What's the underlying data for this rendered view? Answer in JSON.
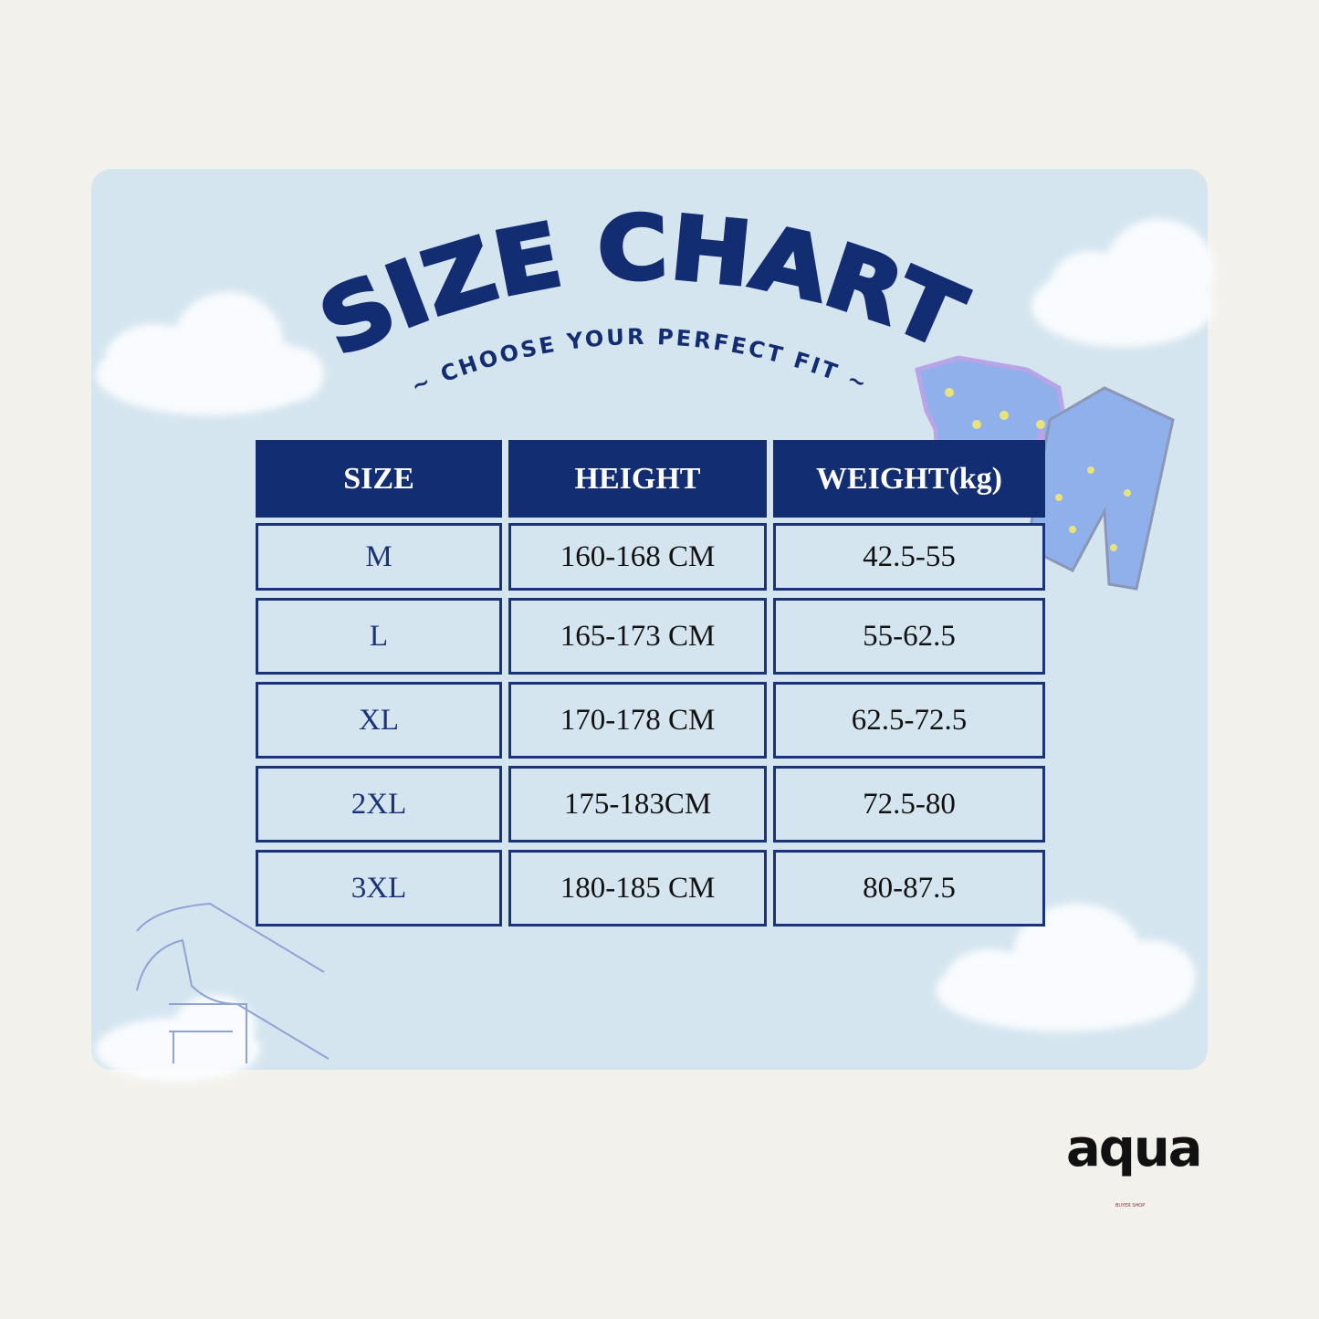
{
  "header": {
    "title": "SIZE CHART",
    "subtitle": "~ CHOOSE YOUR PERFECT FIT ~"
  },
  "table": {
    "columns": [
      "SIZE",
      "HEIGHT",
      "WEIGHT(kg)"
    ],
    "rows": [
      [
        "M",
        "160-168 CM",
        "42.5-55"
      ],
      [
        "L",
        "165-173 CM",
        "55-62.5"
      ],
      [
        "XL",
        "170-178 CM",
        "62.5-72.5"
      ],
      [
        "2XL",
        "175-183CM",
        "72.5-80"
      ],
      [
        "3XL",
        "180-185 CM",
        "80-87.5"
      ]
    ]
  },
  "brand": {
    "name": "aqua",
    "tagline": "BUYER SHOP"
  }
}
